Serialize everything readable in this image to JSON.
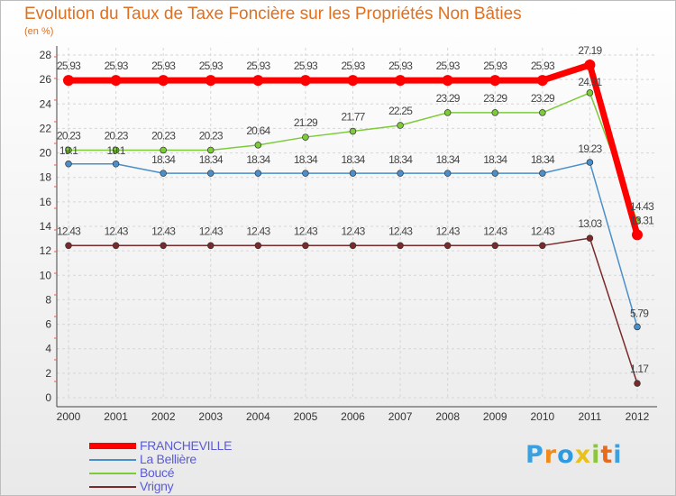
{
  "chart_data": {
    "type": "line",
    "title": "Evolution du Taux de Taxe Foncière sur les Propriétés Non Bâties",
    "subtitle": "(en %)",
    "x": [
      "2000",
      "2001",
      "2002",
      "2003",
      "2004",
      "2005",
      "2006",
      "2007",
      "2008",
      "2009",
      "2010",
      "2011",
      "2012"
    ],
    "ylim": [
      0,
      28
    ],
    "yticks": [
      "0",
      "2",
      "4",
      "6",
      "8",
      "10",
      "12",
      "14",
      "16",
      "18",
      "20",
      "22",
      "24",
      "26",
      "28"
    ],
    "grid": true,
    "legend_position": "bottom-left",
    "series": [
      {
        "name": "FRANCHEVILLE",
        "color": "#ff0000",
        "values": [
          25.93,
          25.93,
          25.93,
          25.93,
          25.93,
          25.93,
          25.93,
          25.93,
          25.93,
          25.93,
          25.93,
          27.19,
          13.31
        ],
        "labels": [
          "25.93",
          "25.93",
          "25.93",
          "25.93",
          "25.93",
          "25.93",
          "25.93",
          "25.93",
          "25.93",
          "25.93",
          "25.93",
          "27.19",
          "13.31"
        ]
      },
      {
        "name": "La Bellière",
        "color": "#4a8fc9",
        "values": [
          19.1,
          19.1,
          18.34,
          18.34,
          18.34,
          18.34,
          18.34,
          18.34,
          18.34,
          18.34,
          18.34,
          19.23,
          5.79
        ],
        "labels": [
          "19.1",
          "19.1",
          "18.34",
          "18.34",
          "18.34",
          "18.34",
          "18.34",
          "18.34",
          "18.34",
          "18.34",
          "18.34",
          "19.23",
          "5.79"
        ]
      },
      {
        "name": "Boucé",
        "color": "#7ecb3a",
        "values": [
          20.23,
          20.23,
          20.23,
          20.23,
          20.64,
          21.29,
          21.77,
          22.25,
          23.29,
          23.29,
          23.29,
          24.91,
          14.43
        ],
        "labels": [
          "20.23",
          "20.23",
          "20.23",
          "20.23",
          "20.64",
          "21.29",
          "21.77",
          "22.25",
          "23.29",
          "23.29",
          "23.29",
          "24.91",
          "14.43"
        ]
      },
      {
        "name": "Vrigny",
        "color": "#7a2a2a",
        "values": [
          12.43,
          12.43,
          12.43,
          12.43,
          12.43,
          12.43,
          12.43,
          12.43,
          12.43,
          12.43,
          12.43,
          13.03,
          1.17
        ],
        "labels": [
          "12.43",
          "12.43",
          "12.43",
          "12.43",
          "12.43",
          "12.43",
          "12.43",
          "12.43",
          "12.43",
          "12.43",
          "12.43",
          "13.03",
          "1.17"
        ]
      }
    ]
  },
  "logo": {
    "letters": [
      "P",
      "r",
      "o",
      "x",
      "i",
      "t",
      "i"
    ],
    "colors": [
      "#3aa0e0",
      "#f08a1c",
      "#2e9be0",
      "#e8c21a",
      "#8cc63e",
      "#e86a1a",
      "#3aa0e0"
    ]
  }
}
